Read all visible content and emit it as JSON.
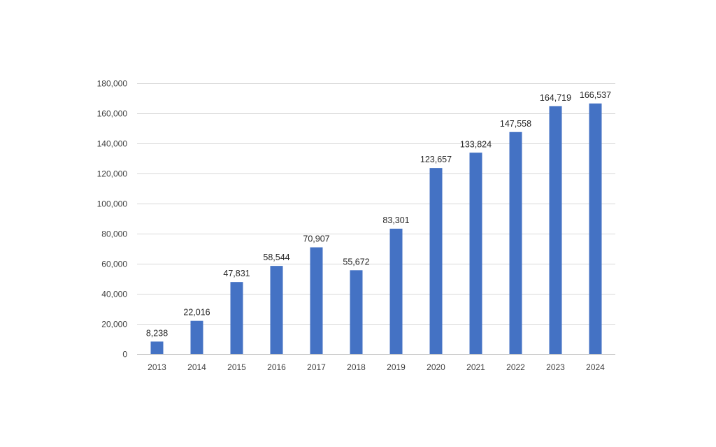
{
  "chart_data": {
    "type": "bar",
    "title": "",
    "xlabel": "",
    "ylabel": "",
    "categories": [
      "2013",
      "2014",
      "2015",
      "2016",
      "2017",
      "2018",
      "2019",
      "2020",
      "2021",
      "2022",
      "2023",
      "2024"
    ],
    "values": [
      8238,
      22016,
      47831,
      58544,
      70907,
      55672,
      83301,
      123657,
      133824,
      147558,
      164719,
      166537
    ],
    "data_labels": [
      "8,238",
      "22,016",
      "47,831",
      "58,544",
      "70,907",
      "55,672",
      "83,301",
      "123,657",
      "133,824",
      "147,558",
      "164,719",
      "166,537"
    ],
    "ylim": [
      0,
      180000
    ],
    "y_ticks": [
      0,
      20000,
      40000,
      60000,
      80000,
      100000,
      120000,
      140000,
      160000,
      180000
    ],
    "y_tick_labels": [
      "0",
      "20,000",
      "40,000",
      "60,000",
      "80,000",
      "100,000",
      "120,000",
      "140,000",
      "160,000",
      "180,000"
    ],
    "grid": true,
    "legend": "none",
    "bar_color": "#4472c4"
  }
}
